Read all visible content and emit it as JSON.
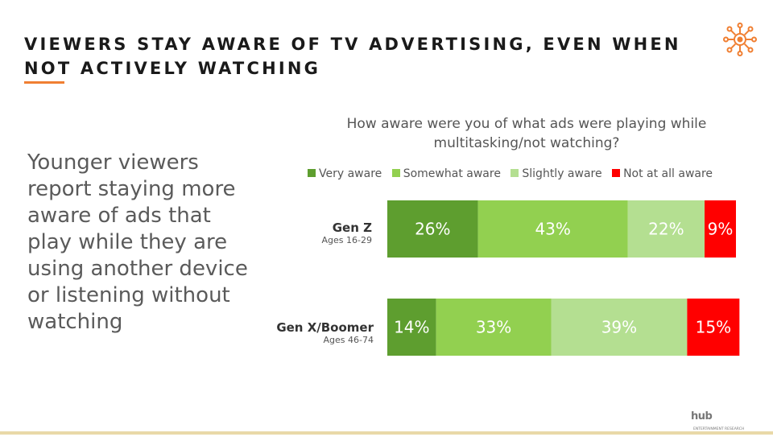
{
  "slide": {
    "title": "VIEWERS STAY AWARE OF TV ADVERTISING, EVEN WHEN NOT ACTIVELY WATCHING",
    "body_text": "Younger viewers report staying more aware of ads that play while they are using another device or listening without watching",
    "accent_color": "#f07f32",
    "logo_icon": "sun-network-icon",
    "footer_brand": "hub",
    "footer_brand_sub": "ENTERTAINMENT RESEARCH"
  },
  "chart_data": {
    "type": "bar",
    "orientation": "horizontal-stacked-100",
    "title": "How aware were you of what ads were playing while multitasking/not watching?",
    "legend_position": "top",
    "categories": [
      {
        "label": "Gen Z",
        "sublabel": "Ages 16-29"
      },
      {
        "label": "Gen X/Boomer",
        "sublabel": "Ages 46-74"
      }
    ],
    "series": [
      {
        "name": "Very aware",
        "color": "#5e9e2f",
        "values": [
          26,
          14
        ],
        "labels": [
          "26%",
          "14%"
        ]
      },
      {
        "name": "Somewhat aware",
        "color": "#92d050",
        "values": [
          43,
          33
        ],
        "labels": [
          "43%",
          "33%"
        ]
      },
      {
        "name": "Slightly aware",
        "color": "#b4df91",
        "values": [
          22,
          39
        ],
        "labels": [
          "22%",
          "39%"
        ]
      },
      {
        "name": "Not at all aware",
        "color": "#ff0000",
        "values": [
          9,
          15
        ],
        "labels": [
          "9%",
          "15%"
        ]
      }
    ],
    "xlim": [
      0,
      100
    ],
    "grid": false
  }
}
